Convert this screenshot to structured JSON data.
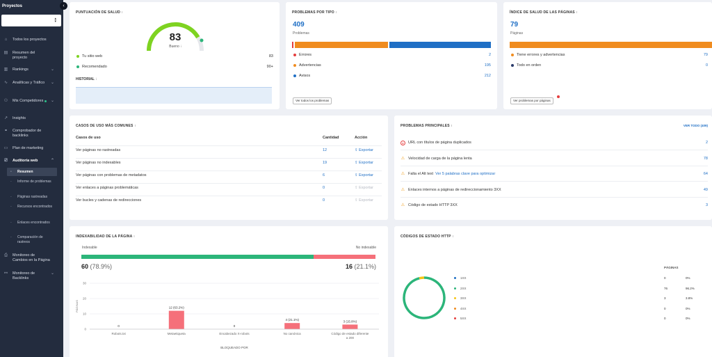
{
  "sidebar": {
    "title": "Proyectos",
    "collapse_icon": "‹",
    "items": [
      {
        "icon": "⌂",
        "label": "Todos los proyectos"
      },
      {
        "icon": "▤",
        "label": "Resumen del proyecto"
      },
      {
        "icon": "▥",
        "label": "Rankings"
      },
      {
        "icon": "∿",
        "label": "Analíticas y Tráfico"
      },
      {
        "icon": "⚇",
        "label": "Mis Competidores"
      },
      {
        "icon": "↗",
        "label": "Insights"
      },
      {
        "icon": "⚭",
        "label": "Comprobador de backlinks"
      },
      {
        "icon": "▭",
        "label": "Plan de marketing"
      },
      {
        "icon": "⎚",
        "label": "Auditoría web"
      },
      {
        "icon": "⎙",
        "label": "Monitoreo de Cambios en la Página"
      },
      {
        "icon": "⚯",
        "label": "Monitoreo de Backlinks"
      }
    ],
    "sub_items": [
      {
        "label": "Resumen"
      },
      {
        "label": "Informe de problemas"
      },
      {
        "label": "Páginas rastreadas"
      },
      {
        "label": "Recursos encontrados"
      },
      {
        "label": "Enlaces encontrados"
      },
      {
        "label": "Comparación de rastreos"
      }
    ]
  },
  "health_score": {
    "title": "PUNTUACIÓN DE SALUD",
    "value": "83",
    "label": "Bueno",
    "gauge_fraction": 0.83,
    "rows": [
      {
        "label": "Tu sitio web",
        "value": "83",
        "color": "#7ed321"
      },
      {
        "label": "Recomendado",
        "value": "90+",
        "color": "#2cb57a"
      }
    ],
    "history_title": "HISTORIAL"
  },
  "problems_by_type": {
    "title": "PROBLEMAS POR TIPO",
    "total": "409",
    "total_label": "Problemas",
    "rows": [
      {
        "label": "Errores",
        "value": "2",
        "color": "#e53e3e"
      },
      {
        "label": "Advertencias",
        "value": "195",
        "color": "#f08c1f"
      },
      {
        "label": "Avisos",
        "value": "212",
        "color": "#1f6fc5"
      }
    ],
    "button": "Ver todos los problemas"
  },
  "page_health": {
    "title": "ÍNDICE DE SALUD DE LAS PÁGINAS",
    "total": "79",
    "total_label": "Páginas",
    "rows": [
      {
        "label": "Tiene errores y advertencias",
        "value": "79",
        "color": "#f08c1f"
      },
      {
        "label": "Todo en orden",
        "value": "0",
        "color": "#2a3b6a"
      }
    ],
    "button": "Ver problemas por páginas"
  },
  "use_cases": {
    "title": "CASOS DE USO MÁS COMUNES",
    "headers": {
      "case": "Casos de uso",
      "qty": "Cantidad",
      "action": "Acción"
    },
    "rows": [
      {
        "label": "Ver páginas no rastreadas",
        "qty": "12",
        "action": "Exportar",
        "enabled": true
      },
      {
        "label": "Ver páginas no indexables",
        "qty": "19",
        "action": "Exportar",
        "enabled": true
      },
      {
        "label": "Ver páginas con problemas de metadatos",
        "qty": "6",
        "action": "Exportar",
        "enabled": true
      },
      {
        "label": "Ver enlaces a páginas problemáticas",
        "qty": "0",
        "action": "Exportar",
        "enabled": false
      },
      {
        "label": "Ver bucles y cadenas de redirecciones",
        "qty": "0",
        "action": "Exportar",
        "enabled": false
      }
    ]
  },
  "top_problems": {
    "title": "PROBLEMAS PRINCIPALES",
    "view_all": "VER TODO (409)",
    "rows": [
      {
        "icon": "error-icon",
        "label": "URL con títulos de página duplicados",
        "extra": "",
        "value": "2"
      },
      {
        "icon": "warning-icon",
        "label": "Velocidad de carga de la página lenta",
        "extra": "",
        "value": "78"
      },
      {
        "icon": "warning-icon",
        "label": "Falta el Alt text",
        "extra": "Ver 5 palabras clave para optimizar",
        "value": "64"
      },
      {
        "icon": "warning-icon",
        "label": "Enlaces internos a páginas de redireccionamiento 3XX",
        "extra": "",
        "value": "49"
      },
      {
        "icon": "warning-icon",
        "label": "Código de estado HTTP 3XX",
        "extra": "",
        "value": "3"
      }
    ]
  },
  "indexability": {
    "title": "INDEXABILIDAD DE LA PÁGINA",
    "indexable_label": "Indexable",
    "non_indexable_label": "No indexable",
    "indexable_count": "60",
    "indexable_pct": "(78.9%)",
    "non_indexable_count": "16",
    "non_indexable_pct": "(21.1%)",
    "indexable_fraction": 0.789,
    "xlabel": "BLOQUEADO POR",
    "ylabel": "PÁGINAS"
  },
  "chart_data": [
    {
      "type": "bar",
      "title": "",
      "xlabel": "BLOQUEADO POR",
      "ylabel": "PÁGINAS",
      "ylim": [
        0,
        30
      ],
      "yticks": [
        "30",
        "20",
        "10",
        "0"
      ],
      "categories": [
        "Robots.txt",
        "Metaetiqueta",
        "Encabezado X-robots",
        "No canónica",
        "Código de estado diferente a 200"
      ],
      "values": [
        0,
        12,
        0,
        4,
        3
      ],
      "data_labels": [
        "0",
        "12 (63.2%)",
        "0",
        "4 (21.1%)",
        "3 (15.8%)"
      ],
      "color": "#f5707a"
    },
    {
      "type": "pie",
      "title": "CÓDIGOS DE ESTADO HTTP",
      "legend_header": "PÁGINAS",
      "categories": [
        "1XX",
        "2XX",
        "3XX",
        "4XX",
        "5XX"
      ],
      "values": [
        0,
        76,
        3,
        0,
        0
      ],
      "percents": [
        "0%",
        "96.2%",
        "3.8%",
        "0%",
        "0%"
      ],
      "colors": [
        "#1f6fc5",
        "#2cb57a",
        "#f5c518",
        "#f08c1f",
        "#e53e3e"
      ]
    }
  ],
  "http_codes": {
    "title": "CÓDIGOS DE ESTADO HTTP"
  }
}
